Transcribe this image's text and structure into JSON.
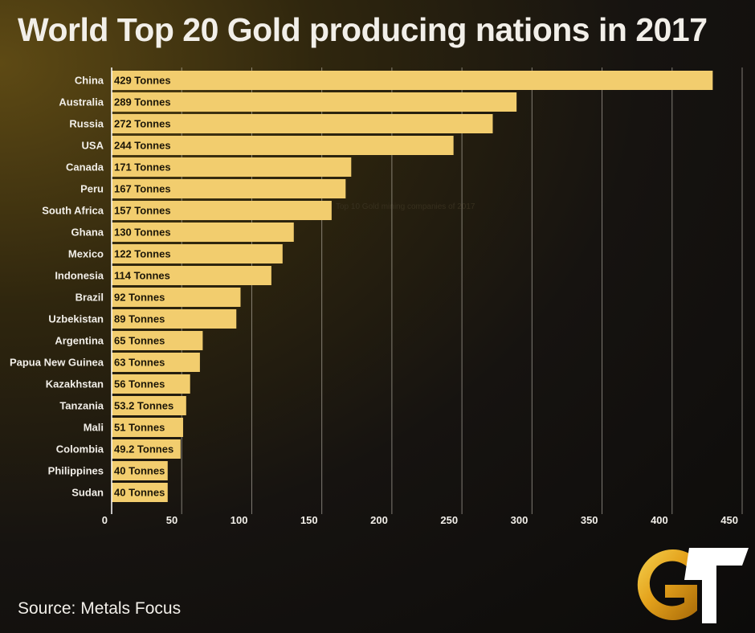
{
  "title": "World Top 20 Gold producing nations in 2017",
  "source": "Source: Metals Focus",
  "watermark": "Top 10 Gold mining companies of 2017",
  "chart_data": {
    "type": "bar",
    "orientation": "horizontal",
    "categories": [
      "China",
      "Australia",
      "Russia",
      "USA",
      "Canada",
      "Peru",
      "South Africa",
      "Ghana",
      "Mexico",
      "Indonesia",
      "Brazil",
      "Uzbekistan",
      "Argentina",
      "Papua New Guinea",
      "Kazakhstan",
      "Tanzania",
      "Mali",
      "Colombia",
      "Philippines",
      "Sudan"
    ],
    "values": [
      429,
      289,
      272,
      244,
      171,
      167,
      157,
      130,
      122,
      114,
      92,
      89,
      65,
      63,
      56,
      53.2,
      51,
      49.2,
      40,
      40
    ],
    "data_labels": [
      "429 Tonnes",
      "289 Tonnes",
      "272 Tonnes",
      "244 Tonnes",
      "171 Tonnes",
      "167 Tonnes",
      "157 Tonnes",
      "130 Tonnes",
      "122 Tonnes",
      "114 Tonnes",
      "92 Tonnes",
      "89 Tonnes",
      "65 Tonnes",
      "63 Tonnes",
      "56 Tonnes",
      "53.2 Tonnes",
      "51 Tonnes",
      "49.2 Tonnes",
      "40 Tonnes",
      "40 Tonnes"
    ],
    "xlim": [
      0,
      450
    ],
    "xticks": [
      0,
      50,
      100,
      150,
      200,
      250,
      300,
      350,
      400,
      450
    ],
    "grid": true,
    "bar_color": "#f2cd6e",
    "text_color": "#f2efe9"
  }
}
